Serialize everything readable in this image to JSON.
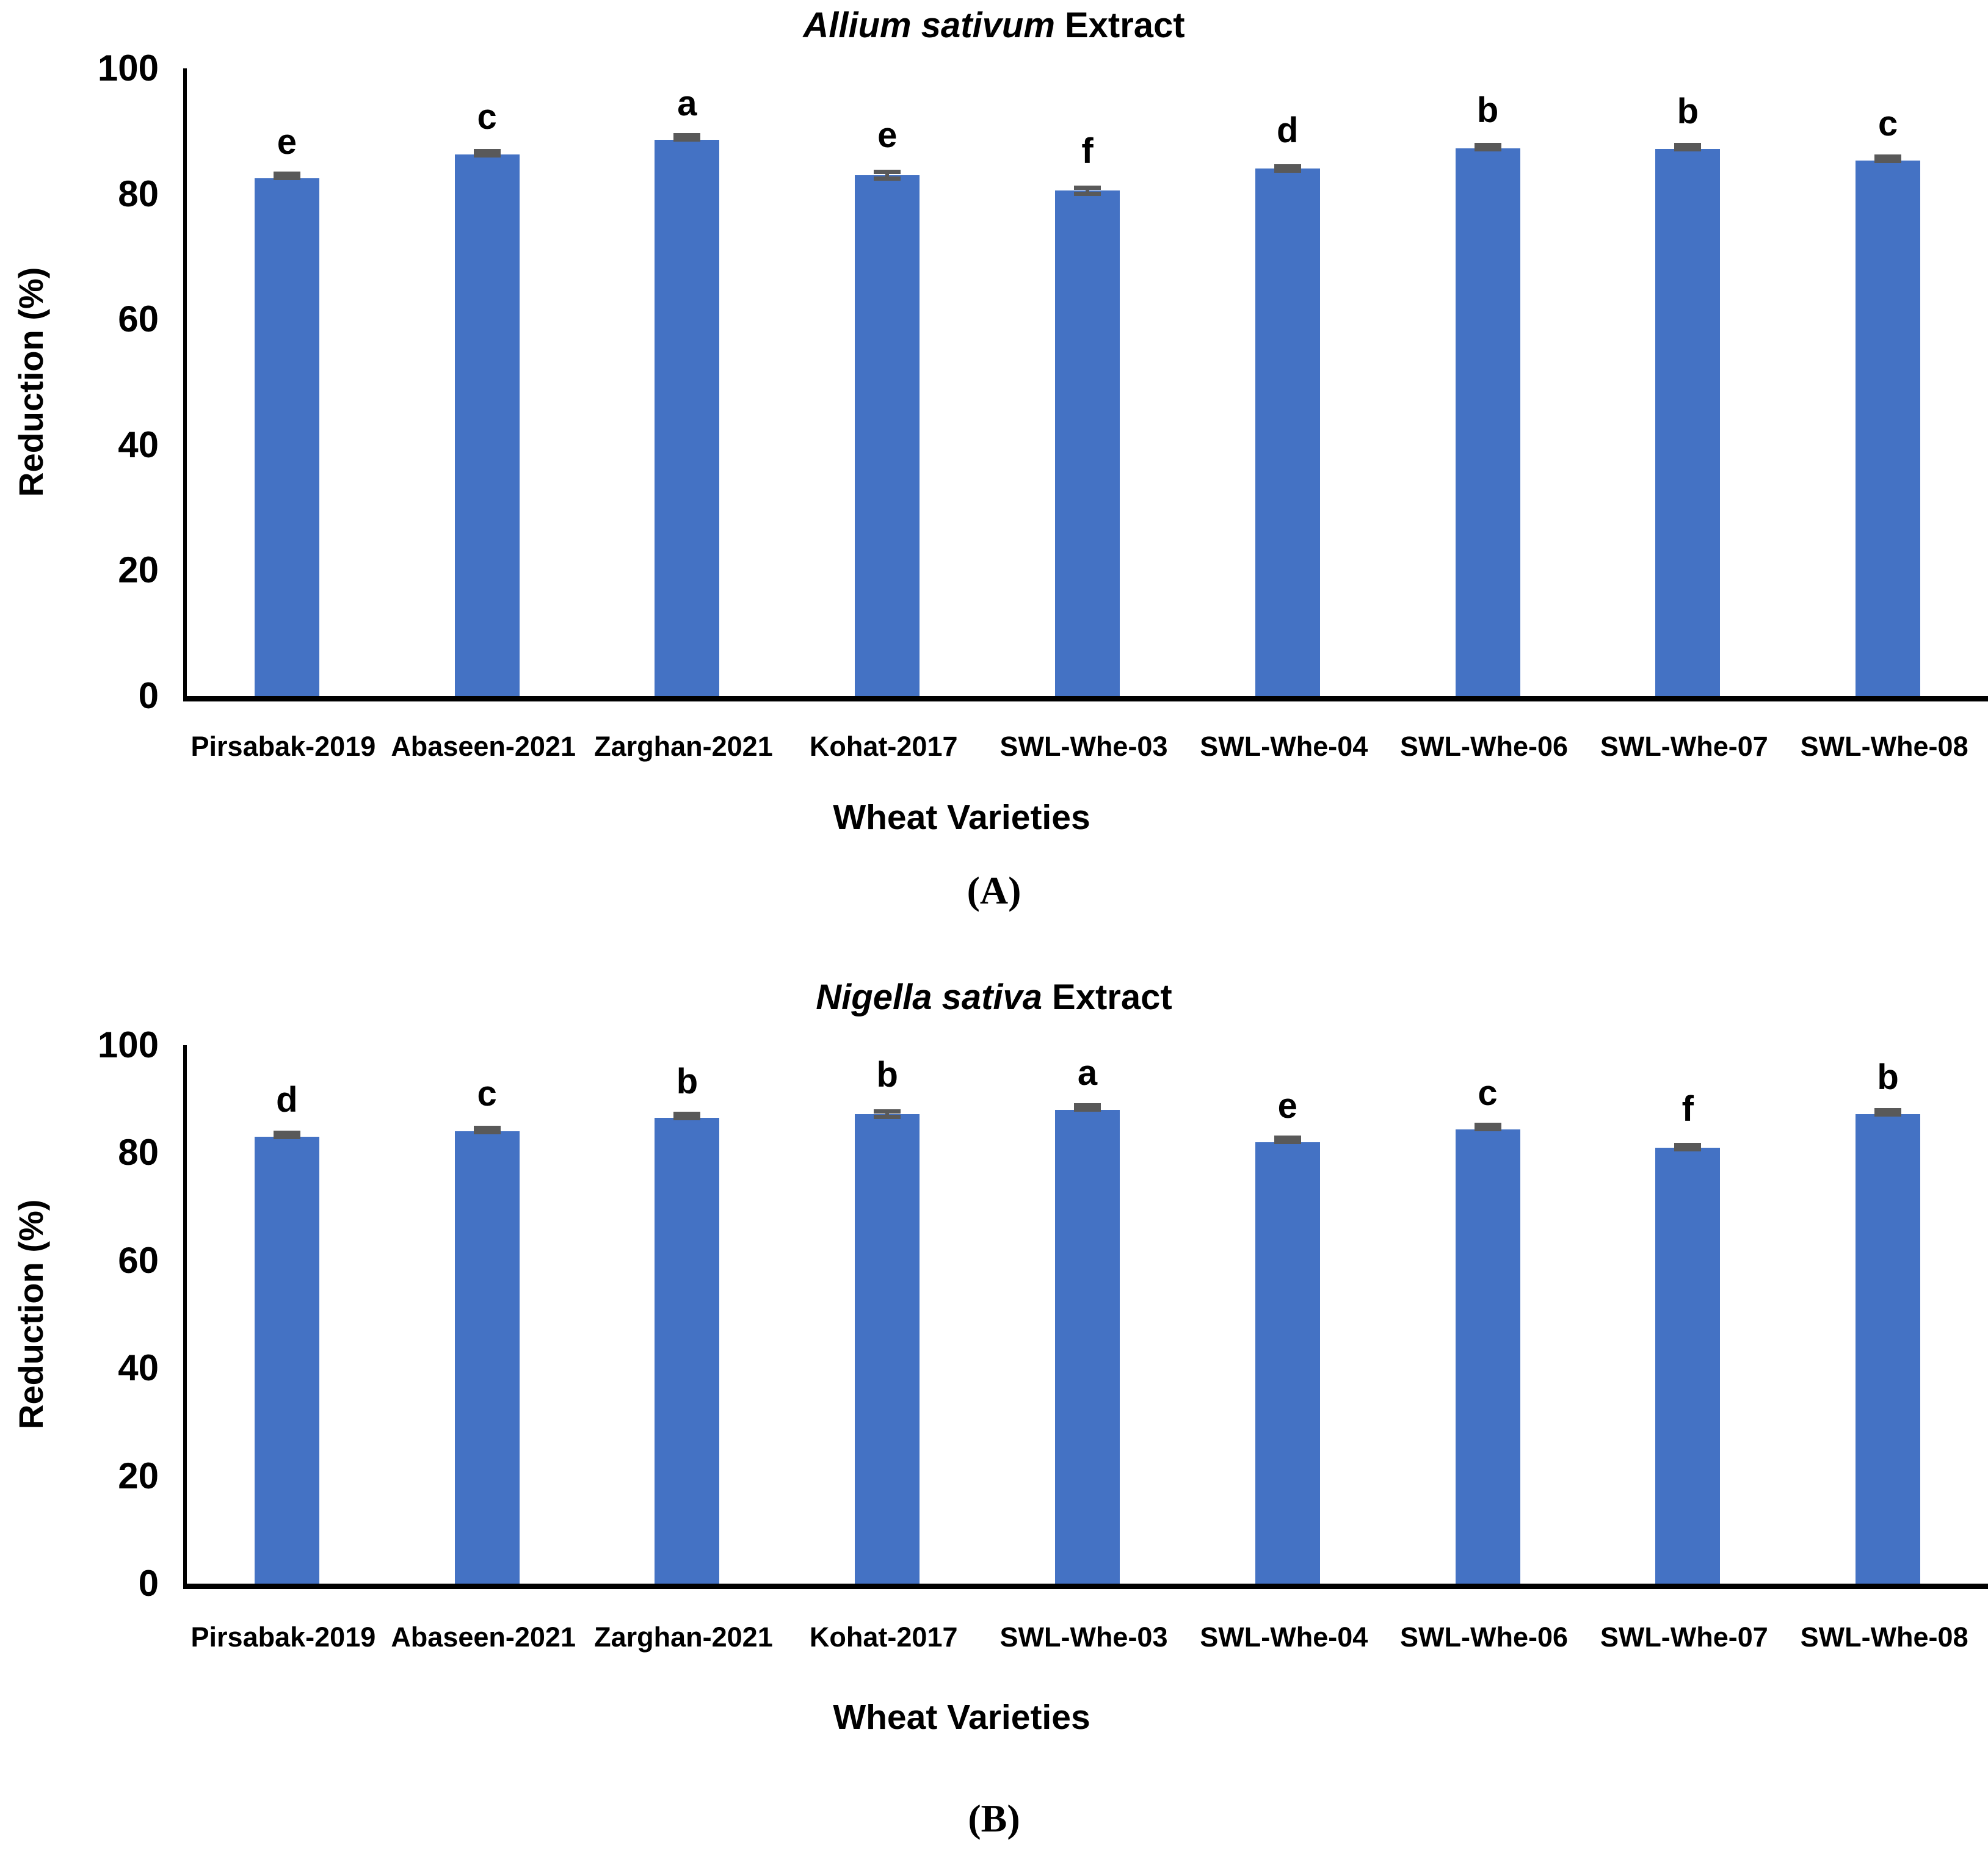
{
  "figure": {
    "bar_color": "#4472C4",
    "error_color": "#595959",
    "axis_color": "#000000",
    "background": "#ffffff"
  },
  "chart_data": [
    {
      "panel": "A",
      "type": "bar",
      "title": "Allium sativum Extract",
      "title_italic": "Allium sativum",
      "title_rest": "Extract",
      "xlabel": "Wheat Varieties",
      "ylabel": "Reduction (%)",
      "caption": "(A)",
      "ylim": [
        0,
        100
      ],
      "yticks": [
        0,
        20,
        40,
        60,
        80,
        100
      ],
      "grid": false,
      "legend": "none",
      "categories": [
        "Pirsabak-2019",
        "Abaseen-2021",
        "Zarghan-2021",
        "Kohat-2017",
        "SWL-Whe-03",
        "SWL-Whe-04",
        "SWL-Whe-06",
        "SWL-Whe-07",
        "SWL-Whe-08"
      ],
      "values": [
        82.5,
        86.3,
        88.6,
        83.0,
        80.5,
        84.0,
        87.3,
        87.2,
        85.3
      ],
      "errors": [
        0.3,
        0.5,
        0.3,
        0.9,
        0.8,
        0.6,
        0.5,
        0.4,
        0.4
      ],
      "letters": [
        "e",
        "c",
        "a",
        "e",
        "f",
        "d",
        "b",
        "b",
        "c"
      ]
    },
    {
      "panel": "B",
      "type": "bar",
      "title": "Nigella sativa Extract",
      "title_italic": "Nigella sativa",
      "title_rest": "Extract",
      "xlabel": "Wheat Varieties",
      "ylabel": "Reduction (%)",
      "caption": "(B)",
      "ylim": [
        0,
        100
      ],
      "yticks": [
        0,
        20,
        40,
        60,
        80,
        100
      ],
      "grid": false,
      "legend": "none",
      "categories": [
        "Pirsabak-2019",
        "Abaseen-2021",
        "Zarghan-2021",
        "Kohat-2017",
        "SWL-Whe-03",
        "SWL-Whe-04",
        "SWL-Whe-06",
        "SWL-Whe-07",
        "SWL-Whe-08"
      ],
      "values": [
        83.0,
        84.0,
        86.5,
        87.2,
        88.0,
        82.0,
        84.3,
        81.0,
        87.2
      ],
      "errors": [
        0.5,
        0.6,
        0.4,
        0.9,
        0.4,
        0.3,
        0.3,
        0.7,
        0.5
      ],
      "letters": [
        "d",
        "c",
        "b",
        "b",
        "a",
        "e",
        "c",
        "f",
        "b"
      ]
    }
  ]
}
